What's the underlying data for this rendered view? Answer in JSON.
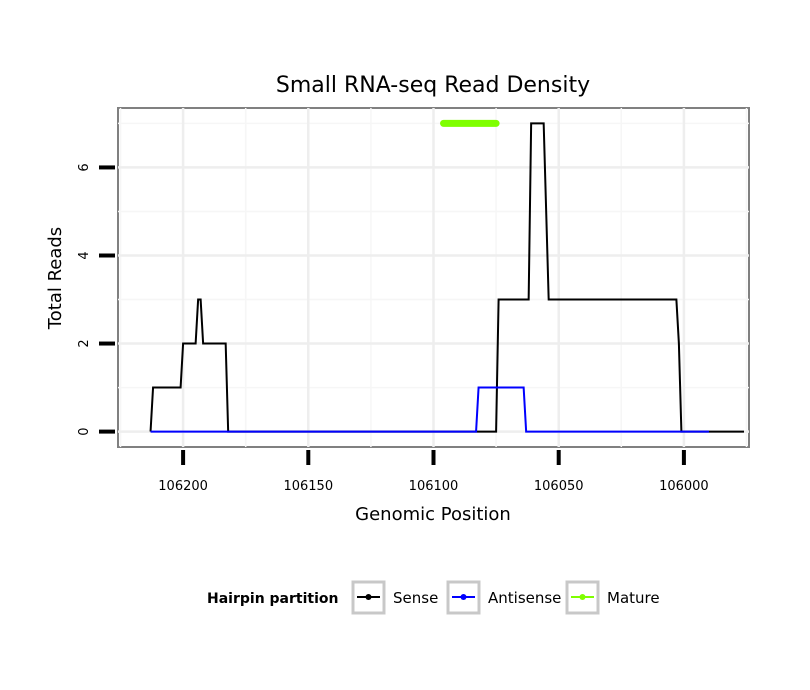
{
  "chart_data": {
    "type": "line",
    "title": "Small RNA-seq Read Density",
    "xlabel": "Genomic Position",
    "ylabel": "Total Reads",
    "x_reversed": true,
    "xlim": [
      106226,
      105974
    ],
    "ylim": [
      -0.35,
      7.35
    ],
    "x_ticks": [
      106200,
      106150,
      106100,
      106050,
      106000
    ],
    "x_tick_labels": [
      "106200",
      "106150",
      "106100",
      "106050",
      "106000"
    ],
    "y_ticks": [
      0,
      2,
      4,
      6
    ],
    "y_tick_labels": [
      "0",
      "2",
      "4",
      "6"
    ],
    "grid": true,
    "legend": {
      "title": "Hairpin partition",
      "position": "bottom",
      "entries": [
        {
          "label": "Sense",
          "color": "#000000"
        },
        {
          "label": "Antisense",
          "color": "#0000ff"
        },
        {
          "label": "Mature",
          "color": "#7fff00"
        }
      ]
    },
    "series": [
      {
        "name": "Sense",
        "color": "#000000",
        "x": [
          106213,
          106212,
          106201,
          106200,
          106195,
          106194,
          106193,
          106192,
          106183,
          106182,
          106075,
          106074,
          106062,
          106061,
          106056,
          106054,
          106003,
          106002,
          106001,
          105990,
          105989,
          105976
        ],
        "y": [
          0,
          1,
          1,
          2,
          2,
          3,
          3,
          2,
          2,
          0,
          0,
          3,
          3,
          7,
          7,
          3,
          3,
          2,
          0,
          0,
          0,
          0
        ]
      },
      {
        "name": "Antisense",
        "color": "#0000ff",
        "x": [
          106213,
          106083,
          106082,
          106064,
          106063,
          105990
        ],
        "y": [
          0,
          0,
          1,
          1,
          0,
          0
        ]
      },
      {
        "name": "Mature",
        "color": "#7fff00",
        "x": [
          106096,
          106075
        ],
        "y": [
          7,
          7
        ]
      }
    ]
  }
}
